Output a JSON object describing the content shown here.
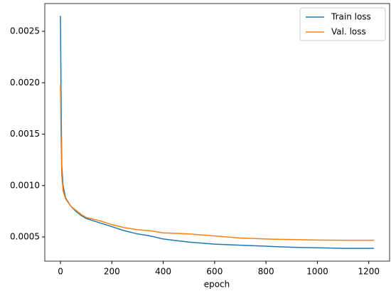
{
  "chart_data": {
    "type": "line",
    "xlabel": "epoch",
    "x": [
      0,
      2,
      5,
      10,
      20,
      40,
      60,
      80,
      100,
      150,
      200,
      250,
      300,
      350,
      400,
      500,
      600,
      700,
      800,
      900,
      1000,
      1100,
      1220
    ],
    "series": [
      {
        "name": "Train loss",
        "color": "#1f77b4",
        "values": [
          0.00265,
          0.002,
          0.0012,
          0.001,
          0.00088,
          0.0008,
          0.00075,
          0.00071,
          0.00068,
          0.00064,
          0.0006,
          0.00056,
          0.00053,
          0.00051,
          0.00048,
          0.00045,
          0.00043,
          0.00042,
          0.00041,
          0.0004,
          0.000395,
          0.00039,
          0.00039
        ]
      },
      {
        "name": "Val. loss",
        "color": "#ff7f0e",
        "values": [
          0.00198,
          0.0015,
          0.0011,
          0.00095,
          0.00087,
          0.0008,
          0.00076,
          0.00072,
          0.00069,
          0.00066,
          0.00062,
          0.00059,
          0.00057,
          0.00056,
          0.00054,
          0.00053,
          0.00051,
          0.00049,
          0.00048,
          0.000475,
          0.00047,
          0.000468,
          0.000468
        ]
      }
    ],
    "xlim": [
      -61,
      1281
    ],
    "xticks": [
      0,
      200,
      400,
      600,
      800,
      1000,
      1200
    ],
    "ylim": [
      0.000265,
      0.00277
    ],
    "yticks": [
      0.0005,
      {
        "value": 0.001,
        "label": "0.0010"
      },
      0.0015,
      {
        "value": 0.002,
        "label": "0.0020"
      },
      0.0025
    ],
    "legend": "upper right"
  }
}
